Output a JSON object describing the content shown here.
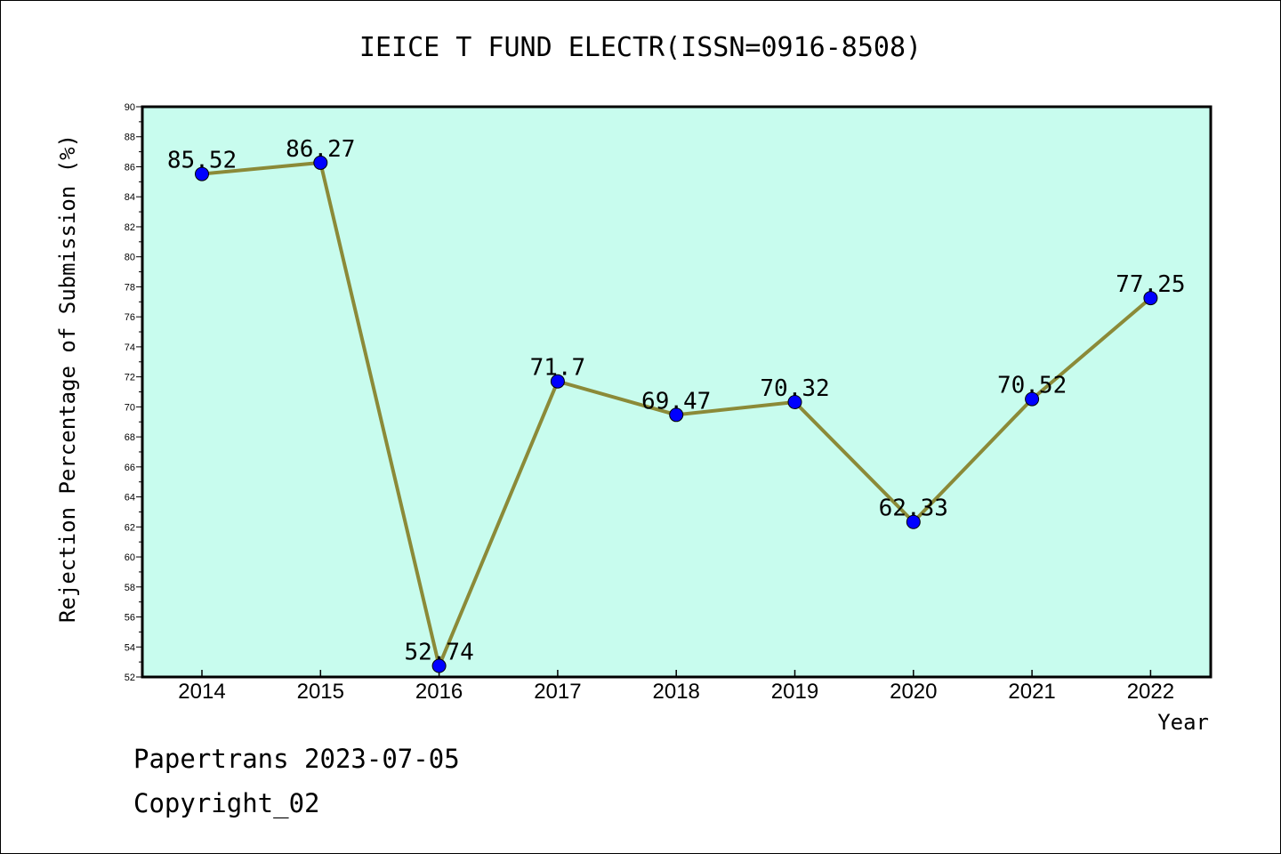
{
  "chart_data": {
    "type": "line",
    "title": "IEICE T FUND ELECTR(ISSN=0916-8508)",
    "xlabel": "Year",
    "ylabel": "Rejection Percentage of Submission (%)",
    "categories": [
      "2014",
      "2015",
      "2016",
      "2017",
      "2018",
      "2019",
      "2020",
      "2021",
      "2022"
    ],
    "series": [
      {
        "values": [
          85.52,
          86.27,
          52.74,
          71.7,
          69.47,
          70.32,
          62.33,
          70.52,
          77.25
        ],
        "labels": [
          "85.52",
          "86.27",
          "52.74",
          "71.7",
          "69.47",
          "70.32",
          "62.33",
          "70.52",
          "77.25"
        ]
      }
    ],
    "ylim": [
      52,
      90
    ],
    "yticks": [
      52,
      54,
      56,
      58,
      60,
      62,
      64,
      66,
      68,
      70,
      72,
      74,
      76,
      78,
      80,
      82,
      84,
      86,
      88,
      90
    ],
    "grid": false,
    "colors": {
      "plot_background": "#c8fcee",
      "line": "#8b8a38",
      "marker": "#0000ff",
      "frame": "#000000"
    }
  },
  "footer": {
    "line1": "Papertrans 2023-07-05",
    "line2": "Copyright_02"
  }
}
